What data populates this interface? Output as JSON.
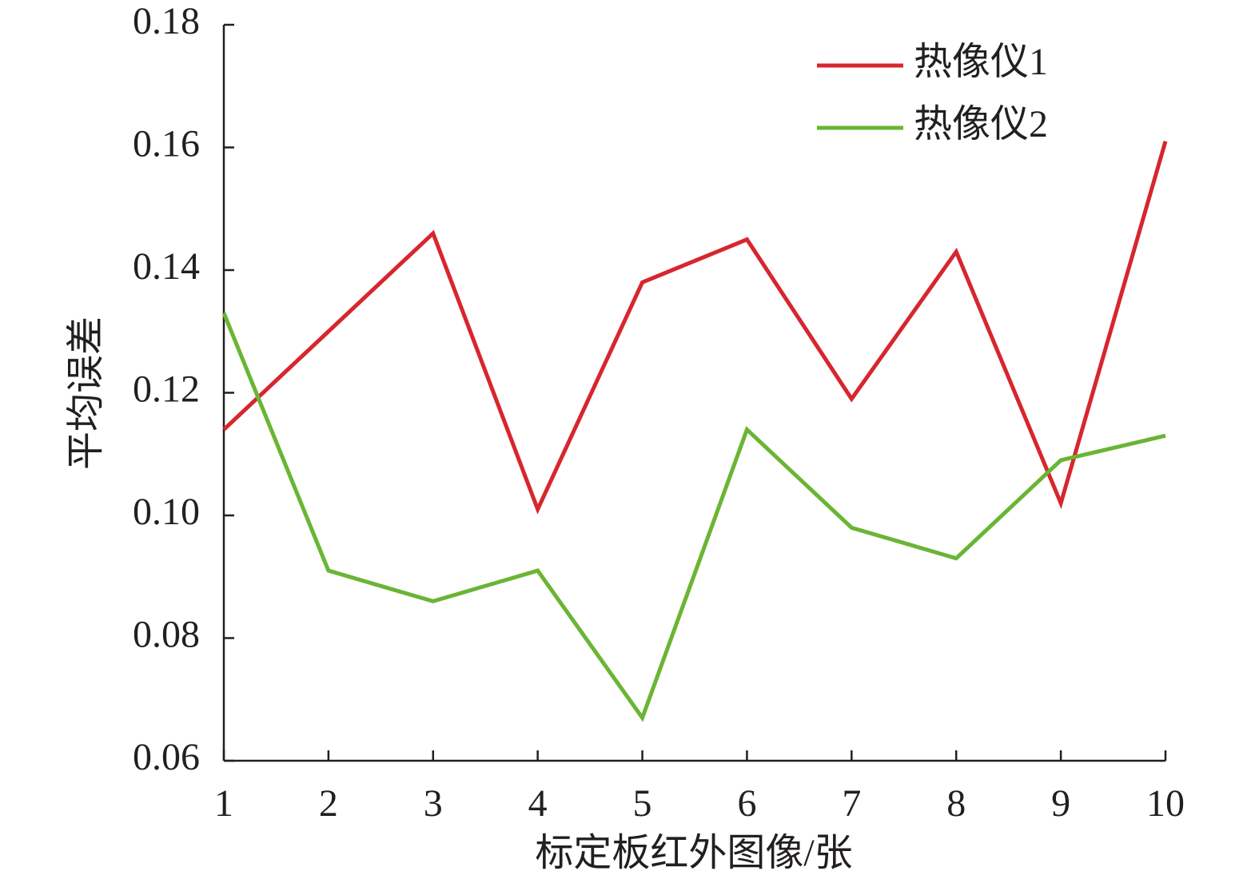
{
  "chart_data": {
    "type": "line",
    "x_label": "标定板红外图像/张",
    "y_label": "平均误差",
    "x": [
      1,
      2,
      3,
      4,
      5,
      6,
      7,
      8,
      9,
      10
    ],
    "xlim": [
      1,
      10
    ],
    "xticks": [
      1,
      2,
      3,
      4,
      5,
      6,
      7,
      8,
      9,
      10
    ],
    "ylim": [
      0.06,
      0.18
    ],
    "yticks": [
      0.06,
      0.08,
      {
        "value": 0.1,
        "label": "0.10"
      },
      0.12,
      0.14,
      0.16,
      0.18
    ],
    "legend": "upper-right",
    "series": [
      {
        "name": "热像仪1",
        "color": "#d7262e",
        "values": [
          0.114,
          0.13,
          0.146,
          0.101,
          0.138,
          0.145,
          0.119,
          0.143,
          0.102,
          0.161
        ]
      },
      {
        "name": "热像仪2",
        "color": "#6ab534",
        "values": [
          0.133,
          0.091,
          0.086,
          0.091,
          0.067,
          0.114,
          0.098,
          0.093,
          0.109,
          0.113
        ]
      }
    ]
  }
}
